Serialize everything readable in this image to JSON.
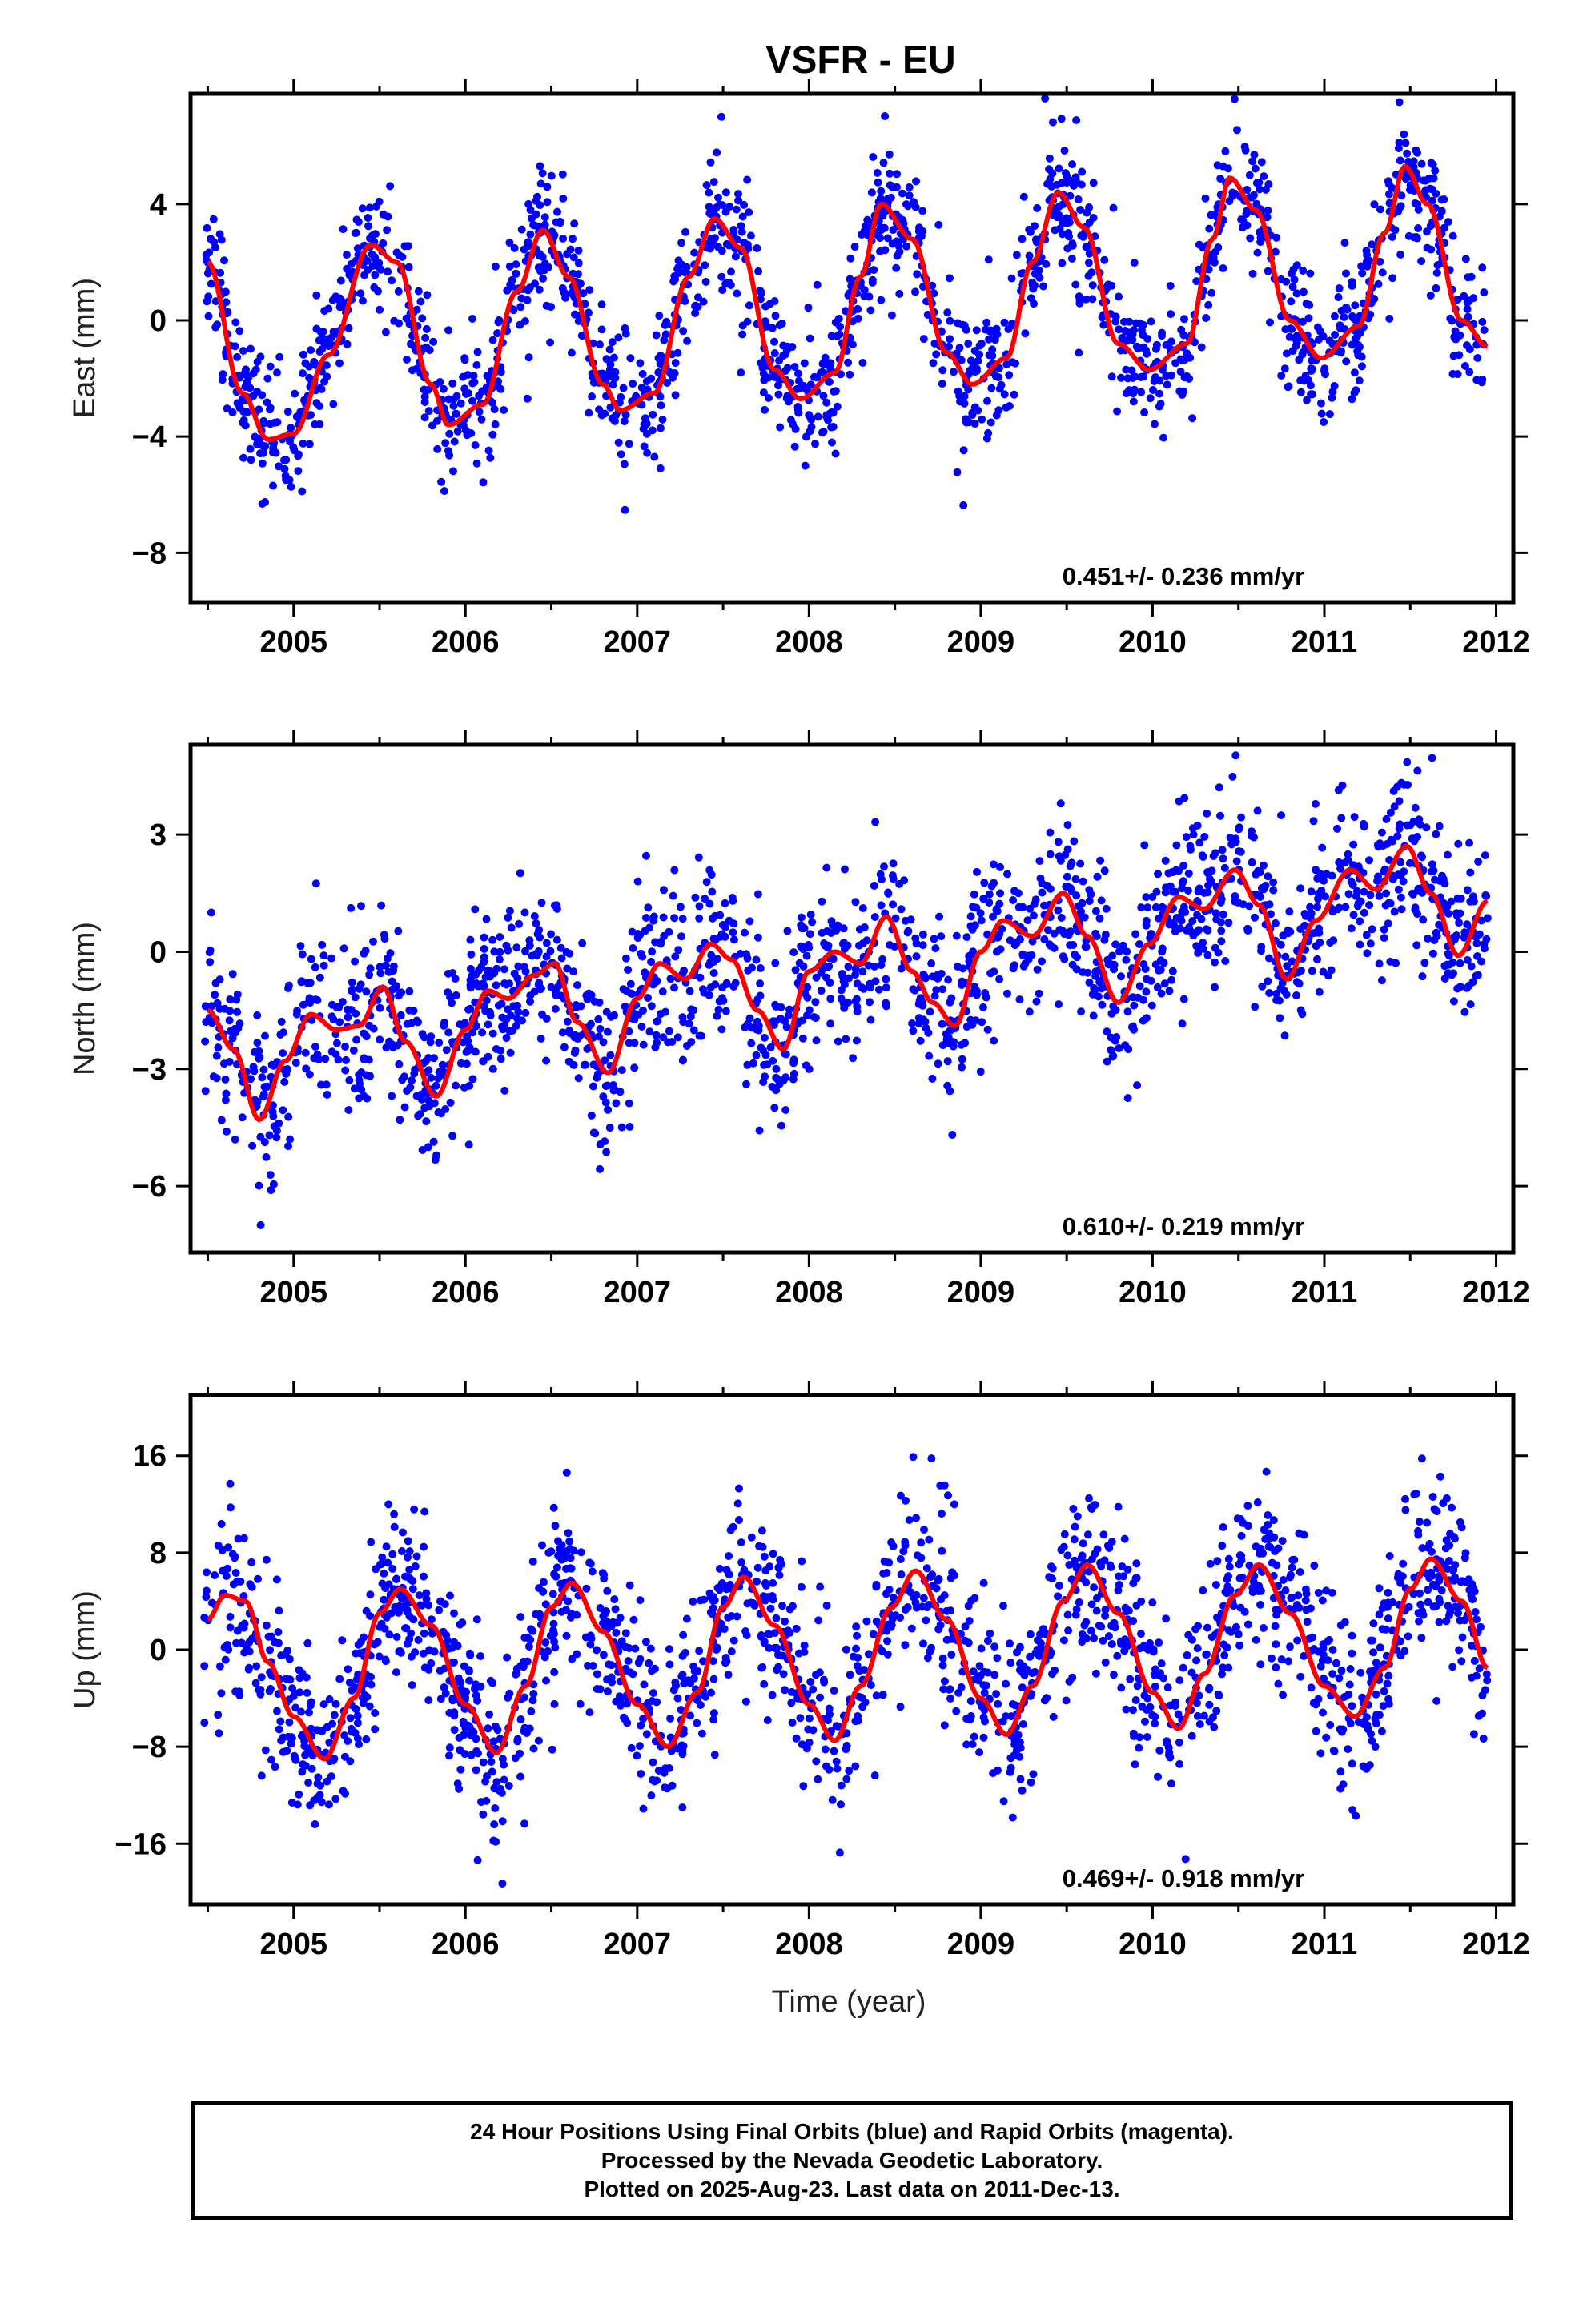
{
  "title": "VSFR - EU",
  "xlabel": "Time (year)",
  "footer": {
    "line1": "24 Hour Positions Using Final Orbits (blue) and Rapid Orbits (magenta).",
    "line2": "Processed by the Nevada Geodetic Laboratory.",
    "line3": "Plotted on 2025-Aug-23. Last data on 2011-Dec-13."
  },
  "colors": {
    "points": "#0000ff",
    "model": "#ff0000",
    "frame": "#000000"
  },
  "chart_data": [
    {
      "type": "scatter",
      "panel": "east",
      "ylabel": "East (mm)",
      "xlim": [
        2004.4,
        2012.1
      ],
      "ylim": [
        -9.7,
        7.8
      ],
      "xticks": [
        2005,
        2006,
        2007,
        2008,
        2009,
        2010,
        2011,
        2012
      ],
      "yticks": [
        -8,
        -4,
        0,
        4
      ],
      "yticklabels": [
        "−8",
        "−4",
        "0",
        "4"
      ],
      "annotation": "0.451+/- 0.236 mm/yr",
      "data_start": 2004.48,
      "data_end": 2011.95,
      "model": {
        "x": [
          2004.5,
          2004.7,
          2004.85,
          2005.0,
          2005.2,
          2005.45,
          2005.6,
          2005.8,
          2005.9,
          2006.1,
          2006.3,
          2006.45,
          2006.6,
          2006.8,
          2006.9,
          2007.1,
          2007.3,
          2007.45,
          2007.6,
          2007.8,
          2007.95,
          2008.15,
          2008.3,
          2008.42,
          2008.6,
          2008.8,
          2008.95,
          2009.15,
          2009.3,
          2009.45,
          2009.6,
          2009.8,
          2009.98,
          2010.2,
          2010.35,
          2010.45,
          2010.6,
          2010.8,
          2010.98,
          2011.2,
          2011.35,
          2011.47,
          2011.6,
          2011.8,
          2011.95
        ],
        "y": [
          2.0,
          -2.5,
          -4.1,
          -3.9,
          -1.2,
          2.6,
          2.0,
          -2.2,
          -3.6,
          -2.9,
          1.0,
          3.1,
          1.5,
          -2.2,
          -3.1,
          -2.5,
          1.5,
          3.5,
          2.5,
          -1.7,
          -2.7,
          -1.8,
          1.5,
          4.0,
          2.8,
          -1.1,
          -2.2,
          -1.3,
          2.0,
          4.4,
          3.2,
          -0.8,
          -1.7,
          -0.8,
          2.8,
          4.9,
          3.8,
          0.0,
          -1.3,
          -0.2,
          3.0,
          5.3,
          4.0,
          0.0,
          -0.9
        ]
      },
      "scatter": {
        "count": 1850,
        "spread": 1.1,
        "outliers": 40,
        "outlier_range": 4.5
      }
    },
    {
      "type": "scatter",
      "panel": "north",
      "ylabel": "North (mm)",
      "xlim": [
        2004.4,
        2012.1
      ],
      "ylim": [
        -7.7,
        5.3
      ],
      "xticks": [
        2005,
        2006,
        2007,
        2008,
        2009,
        2010,
        2011,
        2012
      ],
      "yticks": [
        -6,
        -3,
        0,
        3
      ],
      "yticklabels": [
        "−6",
        "−3",
        "0",
        "3"
      ],
      "annotation": "0.610+/- 0.219 mm/yr",
      "data_start": 2004.48,
      "data_end": 2011.95,
      "model": {
        "x": [
          2004.5,
          2004.65,
          2004.8,
          2004.95,
          2005.1,
          2005.25,
          2005.38,
          2005.52,
          2005.65,
          2005.83,
          2006.0,
          2006.13,
          2006.25,
          2006.4,
          2006.52,
          2006.65,
          2006.83,
          2007.0,
          2007.13,
          2007.28,
          2007.43,
          2007.55,
          2007.7,
          2007.85,
          2008.0,
          2008.15,
          2008.3,
          2008.45,
          2008.6,
          2008.72,
          2008.85,
          2009.0,
          2009.13,
          2009.3,
          2009.48,
          2009.62,
          2009.8,
          2009.98,
          2010.15,
          2010.3,
          2010.48,
          2010.62,
          2010.78,
          2010.95,
          2011.15,
          2011.3,
          2011.48,
          2011.62,
          2011.78,
          2011.95
        ],
        "y": [
          -1.5,
          -2.5,
          -4.3,
          -2.8,
          -1.6,
          -2.0,
          -1.9,
          -0.9,
          -2.3,
          -3.7,
          -2.0,
          -1.0,
          -1.2,
          -0.6,
          -0.3,
          -1.8,
          -3.1,
          -1.2,
          -0.3,
          -0.7,
          0.2,
          -0.2,
          -1.5,
          -2.5,
          -0.5,
          0.0,
          -0.3,
          0.9,
          -0.5,
          -1.3,
          -1.9,
          0.0,
          0.8,
          0.4,
          1.5,
          0.4,
          -1.3,
          0.2,
          1.4,
          1.1,
          2.1,
          1.2,
          -0.7,
          0.8,
          2.1,
          1.6,
          2.7,
          1.5,
          -0.1,
          1.3
        ]
      },
      "scatter": {
        "count": 1850,
        "spread": 1.05,
        "outliers": 40,
        "outlier_range": 3.5
      }
    },
    {
      "type": "scatter",
      "panel": "up",
      "ylabel": "Up (mm)",
      "xlim": [
        2004.4,
        2012.1
      ],
      "ylim": [
        -21,
        21
      ],
      "xticks": [
        2005,
        2006,
        2007,
        2008,
        2009,
        2010,
        2011,
        2012
      ],
      "yticks": [
        -16,
        -8,
        0,
        8,
        16
      ],
      "yticklabels": [
        "−16",
        "−8",
        "0",
        "8",
        "16"
      ],
      "annotation": "0.469+/- 0.918 mm/yr",
      "data_start": 2004.48,
      "data_end": 2011.95,
      "model": {
        "x": [
          2004.5,
          2004.6,
          2004.72,
          2004.85,
          2005.0,
          2005.18,
          2005.35,
          2005.5,
          2005.62,
          2005.8,
          2006.0,
          2006.18,
          2006.35,
          2006.5,
          2006.62,
          2006.8,
          2007.0,
          2007.18,
          2007.35,
          2007.5,
          2007.62,
          2007.8,
          2008.0,
          2008.15,
          2008.3,
          2008.48,
          2008.62,
          2008.8,
          2009.0,
          2009.15,
          2009.3,
          2009.48,
          2009.62,
          2009.8,
          2010.0,
          2010.15,
          2010.3,
          2010.48,
          2010.62,
          2010.8,
          2011.0,
          2011.18,
          2011.35,
          2011.5,
          2011.62,
          2011.8,
          2011.95
        ],
        "y": [
          2.5,
          4.5,
          4.0,
          -1.0,
          -5.5,
          -9.0,
          -4.0,
          3.0,
          5.0,
          2.0,
          -4.5,
          -8.5,
          -3.0,
          3.5,
          5.5,
          1.5,
          -4.5,
          -8.0,
          -3.5,
          3.5,
          6.0,
          2.0,
          -4.5,
          -7.5,
          -3.0,
          3.5,
          6.5,
          2.5,
          -4.0,
          -7.0,
          -3.0,
          4.0,
          7.0,
          3.0,
          -3.5,
          -6.5,
          -2.0,
          4.5,
          7.0,
          3.0,
          -3.0,
          -5.5,
          -1.5,
          5.0,
          7.5,
          4.0,
          -1.5
        ]
      },
      "scatter": {
        "count": 1850,
        "spread": 3.4,
        "outliers": 60,
        "outlier_range": 12
      }
    }
  ]
}
